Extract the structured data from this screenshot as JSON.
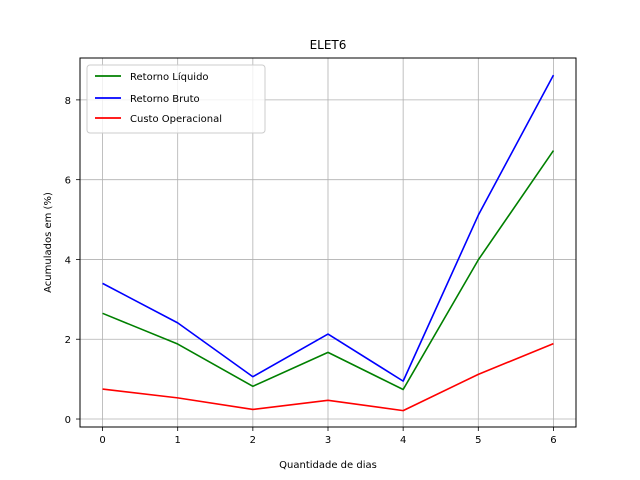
{
  "chart_data": {
    "type": "line",
    "title": "ELET6",
    "xlabel": "Quantidade de dias",
    "ylabel": "Acumulados em (%)",
    "x": [
      0,
      1,
      2,
      3,
      4,
      5,
      6
    ],
    "xlim": [
      -0.3,
      6.3
    ],
    "ylim": [
      -0.2,
      9.05
    ],
    "xticks": [
      0,
      1,
      2,
      3,
      4,
      5,
      6
    ],
    "yticks": [
      0,
      2,
      4,
      6,
      8
    ],
    "grid": true,
    "legend_position": "upper-left",
    "series": [
      {
        "name": "Retorno Líquido",
        "color": "#008000",
        "values": [
          2.65,
          1.88,
          0.82,
          1.67,
          0.74,
          3.99,
          6.73
        ]
      },
      {
        "name": "Retorno Bruto",
        "color": "#0000ff",
        "values": [
          3.4,
          2.41,
          1.06,
          2.13,
          0.95,
          5.11,
          8.62
        ]
      },
      {
        "name": "Custo Operacional",
        "color": "#ff0000",
        "values": [
          0.75,
          0.53,
          0.24,
          0.47,
          0.21,
          1.12,
          1.89
        ]
      }
    ]
  }
}
